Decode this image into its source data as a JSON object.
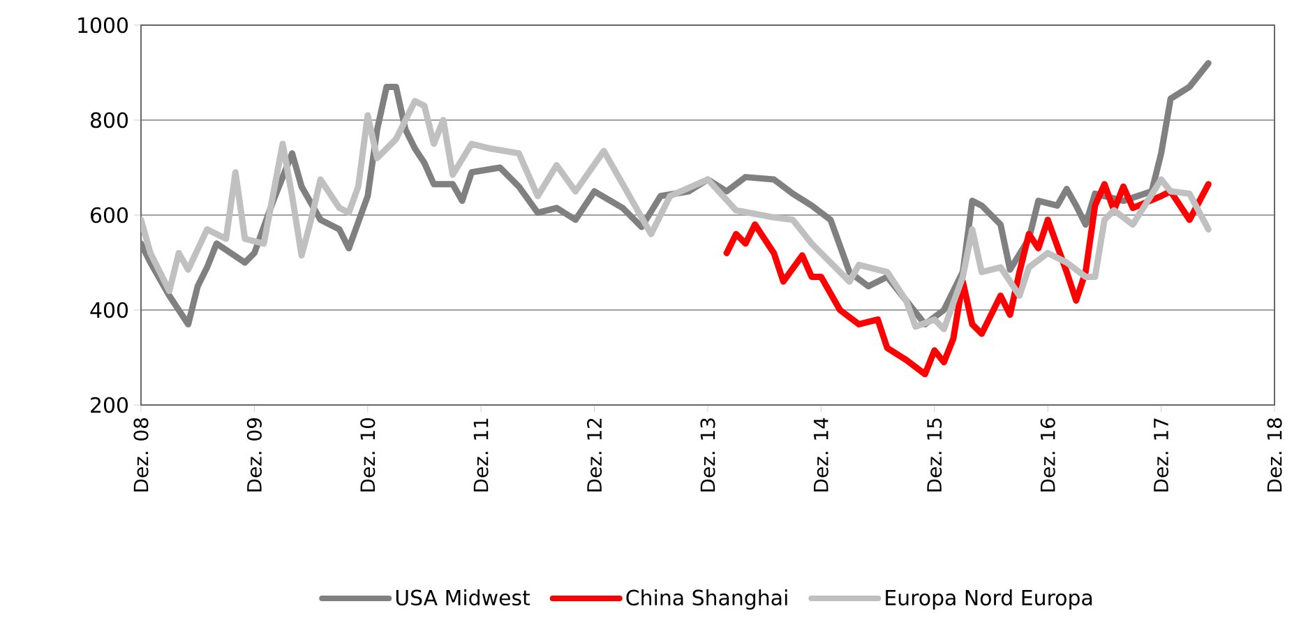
{
  "chart_data": {
    "type": "line",
    "xlim": [
      "2008-12",
      "2018-12"
    ],
    "xticks": [
      {
        "value": "2008-12",
        "label": "Dez. 08"
      },
      {
        "value": "2009-12",
        "label": "Dez. 09"
      },
      {
        "value": "2010-12",
        "label": "Dez. 10"
      },
      {
        "value": "2011-12",
        "label": "Dez. 11"
      },
      {
        "value": "2012-12",
        "label": "Dez. 12"
      },
      {
        "value": "2013-12",
        "label": "Dez. 13"
      },
      {
        "value": "2014-12",
        "label": "Dez. 14"
      },
      {
        "value": "2015-12",
        "label": "Dez. 15"
      },
      {
        "value": "2016-12",
        "label": "Dez. 16"
      },
      {
        "value": "2017-12",
        "label": "Dez. 17"
      },
      {
        "value": "2018-12",
        "label": "Dez. 18"
      }
    ],
    "ylim": [
      200,
      1000
    ],
    "yticks": [
      200,
      400,
      600,
      800,
      1000
    ],
    "grid": "y",
    "legend": "bottom",
    "series": [
      {
        "name": "USA Midwest",
        "color": "#808080",
        "x": [
          "2008-12",
          "2009-01",
          "2009-03",
          "2009-05",
          "2009-06",
          "2009-07",
          "2009-08",
          "2009-11",
          "2009-12",
          "2010-02",
          "2010-04",
          "2010-05",
          "2010-07",
          "2010-09",
          "2010-10",
          "2010-12",
          "2011-01",
          "2011-02",
          "2011-03",
          "2011-04",
          "2011-05",
          "2011-06",
          "2011-07",
          "2011-09",
          "2011-10",
          "2011-11",
          "2012-02",
          "2012-04",
          "2012-06",
          "2012-08",
          "2012-10",
          "2012-12",
          "2013-03",
          "2013-05",
          "2013-07",
          "2013-10",
          "2013-12",
          "2014-02",
          "2014-04",
          "2014-07",
          "2014-09",
          "2014-11",
          "2015-01",
          "2015-03",
          "2015-05",
          "2015-07",
          "2015-09",
          "2015-11",
          "2016-01",
          "2016-03",
          "2016-04",
          "2016-05",
          "2016-07",
          "2016-08",
          "2016-10",
          "2016-11",
          "2017-01",
          "2017-02",
          "2017-03",
          "2017-04",
          "2017-05",
          "2017-08",
          "2017-11",
          "2017-12",
          "2018-01",
          "2018-03",
          "2018-05"
        ],
        "values": [
          540,
          500,
          430,
          370,
          450,
          490,
          540,
          500,
          520,
          630,
          730,
          660,
          590,
          570,
          530,
          640,
          780,
          870,
          870,
          780,
          740,
          710,
          665,
          665,
          630,
          690,
          700,
          660,
          605,
          615,
          590,
          650,
          615,
          575,
          640,
          650,
          675,
          650,
          680,
          675,
          645,
          620,
          590,
          480,
          450,
          470,
          420,
          370,
          400,
          480,
          630,
          620,
          580,
          485,
          550,
          630,
          620,
          655,
          620,
          580,
          645,
          630,
          650,
          730,
          845,
          870,
          920
        ]
      },
      {
        "name": "China Shanghai",
        "color": "#ff0000",
        "x": [
          "2014-02",
          "2014-03",
          "2014-04",
          "2014-05",
          "2014-07",
          "2014-08",
          "2014-10",
          "2014-11",
          "2014-12",
          "2015-02",
          "2015-04",
          "2015-06",
          "2015-07",
          "2015-09",
          "2015-11",
          "2015-12",
          "2016-01",
          "2016-02",
          "2016-03",
          "2016-04",
          "2016-05",
          "2016-07",
          "2016-08",
          "2016-09",
          "2016-10",
          "2016-11",
          "2016-12",
          "2017-02",
          "2017-03",
          "2017-04",
          "2017-05",
          "2017-06",
          "2017-07",
          "2017-08",
          "2017-09",
          "2017-12",
          "2018-01",
          "2018-03",
          "2018-05"
        ],
        "values": [
          520,
          560,
          540,
          580,
          520,
          460,
          515,
          470,
          470,
          400,
          370,
          380,
          320,
          295,
          265,
          315,
          290,
          340,
          460,
          370,
          350,
          430,
          390,
          480,
          560,
          530,
          590,
          480,
          420,
          480,
          620,
          665,
          610,
          660,
          615,
          640,
          650,
          590,
          665
        ]
      },
      {
        "name": "Europa Nord Europa",
        "color": "#c0c0c0",
        "x": [
          "2008-12",
          "2009-01",
          "2009-03",
          "2009-04",
          "2009-05",
          "2009-07",
          "2009-09",
          "2009-10",
          "2009-11",
          "2010-01",
          "2010-03",
          "2010-04",
          "2010-05",
          "2010-06",
          "2010-07",
          "2010-09",
          "2010-10",
          "2010-11",
          "2010-12",
          "2011-01",
          "2011-03",
          "2011-05",
          "2011-06",
          "2011-07",
          "2011-08",
          "2011-09",
          "2011-11",
          "2012-01",
          "2012-04",
          "2012-06",
          "2012-08",
          "2012-10",
          "2013-01",
          "2013-04",
          "2013-06",
          "2013-08",
          "2013-12",
          "2014-03",
          "2014-07",
          "2014-09",
          "2014-11",
          "2015-01",
          "2015-03",
          "2015-04",
          "2015-07",
          "2015-09",
          "2015-10",
          "2015-12",
          "2016-01",
          "2016-03",
          "2016-04",
          "2016-05",
          "2016-07",
          "2016-09",
          "2016-10",
          "2016-12",
          "2017-02",
          "2017-04",
          "2017-05",
          "2017-06",
          "2017-07",
          "2017-09",
          "2017-12",
          "2018-01",
          "2018-03",
          "2018-05"
        ],
        "values": [
          590,
          520,
          440,
          520,
          485,
          570,
          550,
          690,
          550,
          540,
          750,
          640,
          515,
          590,
          675,
          615,
          605,
          660,
          810,
          720,
          760,
          840,
          830,
          750,
          800,
          685,
          750,
          740,
          730,
          640,
          705,
          650,
          735,
          630,
          560,
          640,
          675,
          610,
          595,
          590,
          540,
          500,
          460,
          495,
          480,
          420,
          365,
          380,
          360,
          470,
          570,
          480,
          490,
          430,
          490,
          520,
          500,
          470,
          470,
          590,
          610,
          580,
          675,
          650,
          645,
          570
        ]
      }
    ]
  }
}
